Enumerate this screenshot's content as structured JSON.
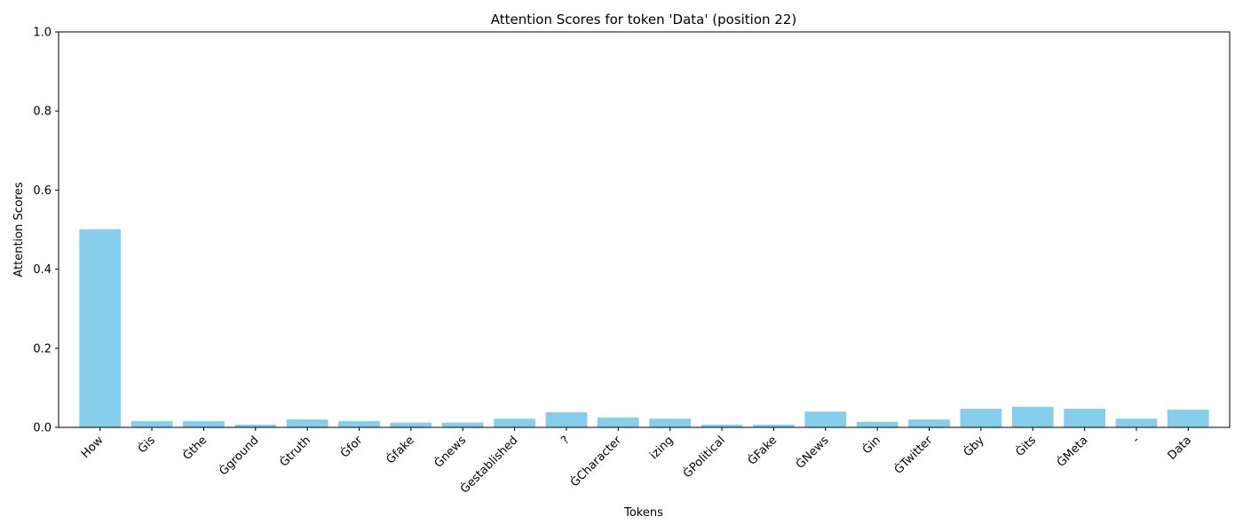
{
  "chart_data": {
    "type": "bar",
    "title": "Attention Scores for token 'Data' (position 22)",
    "xlabel": "Tokens",
    "ylabel": "Attention Scores",
    "ylim": [
      0,
      1
    ],
    "yticks": [
      "0.0",
      "0.2",
      "0.4",
      "0.6",
      "0.8",
      "1.0"
    ],
    "grid": false,
    "bar_color": "#87ceeb",
    "categories": [
      "How",
      "Ġis",
      "Ġthe",
      "Ġground",
      "Ġtruth",
      "Ġfor",
      "Ġfake",
      "Ġnews",
      "Ġestablished",
      "?",
      "ĠCharacter",
      "izing",
      "ĠPolitical",
      "ĠFake",
      "ĠNews",
      "Ġin",
      "ĠTwitter",
      "Ġby",
      "Ġits",
      "ĠMeta",
      "-",
      "Data"
    ],
    "values": [
      0.501,
      0.016,
      0.016,
      0.007,
      0.02,
      0.016,
      0.012,
      0.012,
      0.022,
      0.038,
      0.025,
      0.022,
      0.007,
      0.007,
      0.04,
      0.014,
      0.02,
      0.047,
      0.052,
      0.047,
      0.022,
      0.045
    ]
  }
}
